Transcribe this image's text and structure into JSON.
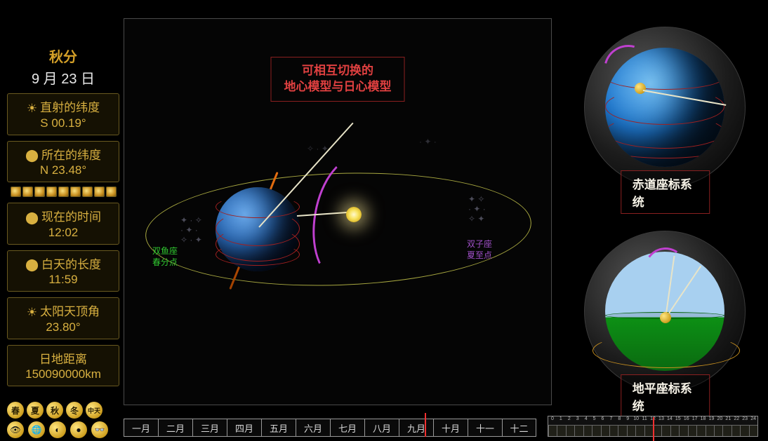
{
  "solar_term": "秋分",
  "date": {
    "prefix": "9",
    "month_char": "月",
    "day": "23",
    "day_char": "日"
  },
  "panels": {
    "sub_solar": {
      "label": "直射的纬度",
      "value": "S 00.19°"
    },
    "obs_lat": {
      "label": "所在的纬度",
      "value": "N 23.48°"
    },
    "now_time": {
      "label": "现在的时间",
      "value": "12:02"
    },
    "day_len": {
      "label": "白天的长度",
      "value": "11:59"
    },
    "zenith": {
      "label": "太阳天顶角",
      "value": "23.80°"
    },
    "dist": {
      "label": "日地距离",
      "value": "150090000km"
    }
  },
  "main_title_l1": "可相互切换的",
  "main_title_l2": "地心模型与日心模型",
  "annotations": {
    "vernal_a": "双鱼座",
    "vernal_b": "春分点",
    "summer_a": "双子座",
    "summer_b": "夏至点"
  },
  "card_eq": "赤道座标系统",
  "card_hz": "地平座标系统",
  "months": [
    "一月",
    "二月",
    "三月",
    "四月",
    "五月",
    "六月",
    "七月",
    "八月",
    "九月",
    "十月",
    "十一",
    "十二"
  ],
  "month_marker_index": 8.75,
  "hours": [
    "0",
    "1",
    "2",
    "3",
    "4",
    "5",
    "6",
    "7",
    "8",
    "9",
    "10",
    "11",
    "12",
    "13",
    "14",
    "15",
    "16",
    "17",
    "18",
    "19",
    "20",
    "21",
    "22",
    "23",
    "24"
  ],
  "hour_marker": 12.03,
  "seasons": [
    "春",
    "夏",
    "秋",
    "冬",
    "中天"
  ],
  "view_glyphs": [
    "👁",
    "🌐",
    "◐",
    "●",
    "👓"
  ],
  "colors": {
    "frame": "#4a4a4a",
    "title_border": "#8a2020",
    "title_text": "#e04040",
    "orbit": "#a8a840",
    "marker": "#f03030"
  }
}
